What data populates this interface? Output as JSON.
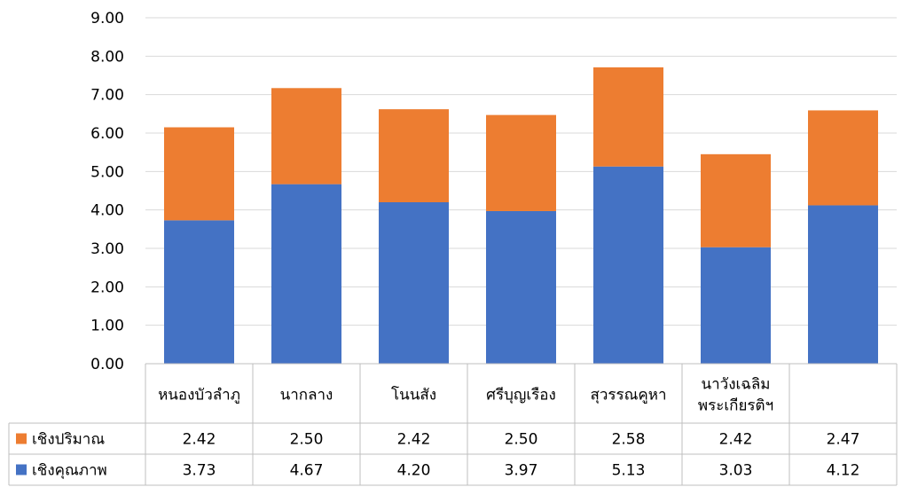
{
  "chart_data": {
    "type": "bar",
    "stacked": true,
    "categories": [
      [
        "หนองบัวลำภู"
      ],
      [
        "นากลาง"
      ],
      [
        "โนนสัง"
      ],
      [
        "ศรีบุญเรือง"
      ],
      [
        "สุวรรณคูหา"
      ],
      [
        "นาวังเฉลิม",
        "พระเกียรติฯ"
      ],
      [
        ""
      ]
    ],
    "series": [
      {
        "name": "เชิงคุณภาพ",
        "color": "#4472C4",
        "values": [
          3.73,
          4.67,
          4.2,
          3.97,
          5.13,
          3.03,
          4.12
        ]
      },
      {
        "name": "เชิงปริมาณ",
        "color": "#ED7D31",
        "values": [
          2.42,
          2.5,
          2.42,
          2.5,
          2.58,
          2.42,
          2.47
        ]
      }
    ],
    "table_rows": [
      {
        "name": "เชิงปริมาณ",
        "color": "#ED7D31",
        "labels": [
          "2.42",
          "2.50",
          "2.42",
          "2.50",
          "2.58",
          "2.42",
          "2.47"
        ]
      },
      {
        "name": "เชิงคุณภาพ",
        "color": "#4472C4",
        "labels": [
          "3.73",
          "4.67",
          "4.20",
          "3.97",
          "5.13",
          "3.03",
          "4.12"
        ]
      }
    ],
    "ylim": [
      0,
      9
    ],
    "yticks": [
      "0.00",
      "1.00",
      "2.00",
      "3.00",
      "4.00",
      "5.00",
      "6.00",
      "7.00",
      "8.00",
      "9.00"
    ],
    "grid": true,
    "legend": "data-table"
  }
}
